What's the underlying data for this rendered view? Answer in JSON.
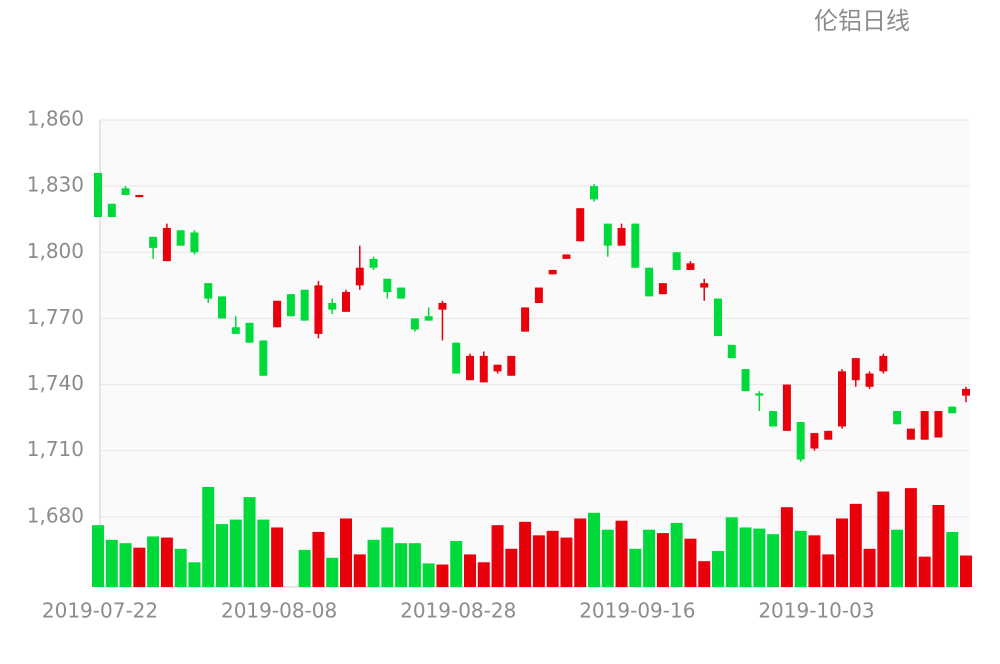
{
  "chart_data": {
    "type": "candlestick",
    "title": "伦铝日线",
    "categories": [
      "2019-07-22",
      null,
      null,
      null,
      null,
      null,
      null,
      null,
      null,
      null,
      null,
      null,
      null,
      "2019-08-08",
      null,
      null,
      null,
      null,
      null,
      null,
      null,
      null,
      null,
      null,
      null,
      null,
      "2019-08-28",
      null,
      null,
      null,
      null,
      null,
      null,
      null,
      null,
      null,
      null,
      null,
      null,
      "2019-09-16",
      null,
      null,
      null,
      null,
      null,
      null,
      null,
      null,
      null,
      null,
      null,
      null,
      "2019-10-03",
      null,
      null,
      null,
      null,
      null,
      null,
      null,
      null,
      null,
      null,
      null
    ],
    "open": [
      1836,
      1822,
      1829,
      1825,
      1807,
      1796,
      1810,
      1809,
      1786,
      1780,
      1766,
      1768,
      1760,
      1766,
      1781,
      1783,
      1763,
      1777,
      1773,
      1785,
      1797,
      1788,
      1784,
      1770,
      1771,
      1774,
      1759,
      1742,
      1741,
      1746,
      1744,
      1764,
      1777,
      1790,
      1797,
      1805,
      1830,
      1813,
      1803,
      1813,
      1793,
      1781,
      1800,
      1792,
      1784,
      1779,
      1758,
      1747,
      1736,
      1728,
      1719,
      1723,
      1711,
      1715,
      1721,
      1742,
      1739,
      1746,
      1728,
      1715,
      1715,
      1716,
      1730,
      1735
    ],
    "high": [
      1836,
      1822,
      1830,
      1826,
      1807,
      1813,
      1810,
      1810,
      1786,
      1780,
      1771,
      1768,
      1760,
      1778,
      1781,
      1783,
      1787,
      1779,
      1783,
      1803,
      1798,
      1788,
      1784,
      1770,
      1775,
      1778,
      1759,
      1754,
      1755,
      1749,
      1753,
      1775,
      1784,
      1792,
      1799,
      1820,
      1831,
      1813,
      1813,
      1813,
      1793,
      1786,
      1800,
      1796,
      1788,
      1779,
      1758,
      1747,
      1737,
      1728,
      1740,
      1723,
      1718,
      1719,
      1747,
      1752,
      1746,
      1754,
      1728,
      1720,
      1728,
      1728,
      1730,
      1739
    ],
    "low": [
      1816,
      1816,
      1826,
      1825,
      1797,
      1796,
      1803,
      1799,
      1777,
      1770,
      1763,
      1759,
      1744,
      1766,
      1771,
      1769,
      1761,
      1772,
      1773,
      1783,
      1792,
      1779,
      1779,
      1764,
      1769,
      1760,
      1745,
      1742,
      1741,
      1745,
      1744,
      1764,
      1777,
      1790,
      1797,
      1805,
      1823,
      1798,
      1803,
      1793,
      1780,
      1781,
      1792,
      1792,
      1778,
      1762,
      1752,
      1737,
      1728,
      1721,
      1719,
      1705,
      1710,
      1715,
      1720,
      1739,
      1738,
      1745,
      1722,
      1715,
      1715,
      1716,
      1727,
      1732
    ],
    "close": [
      1816,
      1816,
      1826,
      1826,
      1802,
      1811,
      1803,
      1800,
      1779,
      1770,
      1763,
      1759,
      1744,
      1778,
      1771,
      1769,
      1785,
      1774,
      1782,
      1793,
      1793,
      1782,
      1779,
      1765,
      1769,
      1777,
      1745,
      1753,
      1753,
      1749,
      1753,
      1775,
      1784,
      1792,
      1799,
      1820,
      1824,
      1803,
      1811,
      1793,
      1780,
      1786,
      1792,
      1795,
      1786,
      1762,
      1752,
      1737,
      1735,
      1721,
      1740,
      1706,
      1718,
      1719,
      1746,
      1752,
      1745,
      1753,
      1722,
      1720,
      1728,
      1728,
      1727,
      1738
    ],
    "volume": [
      55,
      42,
      39,
      35,
      45,
      44,
      34,
      22,
      89,
      56,
      60,
      80,
      60,
      53,
      0,
      33,
      49,
      26,
      61,
      29,
      42,
      53,
      39,
      39,
      21,
      20,
      41,
      29,
      22,
      55,
      34,
      58,
      46,
      50,
      44,
      61,
      66,
      51,
      59,
      34,
      51,
      48,
      57,
      43,
      23,
      32,
      62,
      53,
      52,
      47,
      71,
      50,
      46,
      29,
      61,
      74,
      34,
      85,
      51,
      88,
      27,
      73,
      49,
      28
    ],
    "up_color": "#e8000b",
    "down_color": "#00d93a",
    "ylim": [
      1650,
      1860
    ],
    "yticks": [
      {
        "value": 1680,
        "label": "1,680"
      },
      {
        "value": 1710,
        "label": "1,710"
      },
      {
        "value": 1740,
        "label": "1,740"
      },
      {
        "value": 1770,
        "label": "1,770"
      },
      {
        "value": 1800,
        "label": "1,800"
      },
      {
        "value": 1830,
        "label": "1,830"
      },
      {
        "value": 1860,
        "label": "1,860"
      }
    ],
    "grid": true
  }
}
